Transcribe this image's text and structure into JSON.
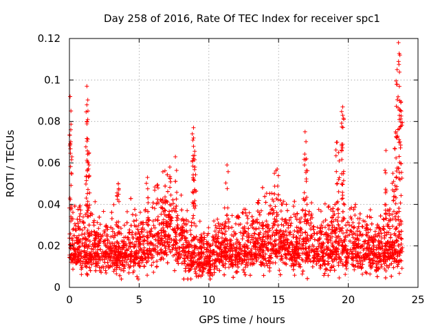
{
  "chart_data": {
    "type": "scatter",
    "title": "Day 258 of 2016, Rate Of TEC Index for receiver spc1",
    "xlabel": "GPS time / hours",
    "ylabel": "ROTI / TECUs",
    "xlim": [
      0,
      25
    ],
    "ylim": [
      0,
      0.12
    ],
    "x_ticks": [
      0,
      5,
      10,
      15,
      20,
      25
    ],
    "y_ticks": [
      0,
      0.02,
      0.04,
      0.06,
      0.08,
      0.1,
      0.12
    ],
    "x_tick_labels": [
      "0",
      "5",
      "10",
      "15",
      "20",
      "25"
    ],
    "y_tick_labels": [
      "0",
      "0.02",
      "0.04",
      "0.06",
      "0.08",
      "0.1",
      "0.12"
    ],
    "grid": true,
    "marker": "plus",
    "marker_color": "#ff0000",
    "n_points": 4300,
    "series": [
      {
        "name": "ROTI",
        "description_note": "Dense cloud of ROTI samples; baseline level per hour with visible spikes.",
        "baseline_profile": [
          {
            "x": 0.0,
            "y": 0.018
          },
          {
            "x": 1.0,
            "y": 0.018
          },
          {
            "x": 2.0,
            "y": 0.016
          },
          {
            "x": 3.0,
            "y": 0.016
          },
          {
            "x": 4.0,
            "y": 0.016
          },
          {
            "x": 5.0,
            "y": 0.017
          },
          {
            "x": 6.0,
            "y": 0.021
          },
          {
            "x": 7.0,
            "y": 0.026
          },
          {
            "x": 8.0,
            "y": 0.02
          },
          {
            "x": 9.0,
            "y": 0.012
          },
          {
            "x": 10.0,
            "y": 0.013
          },
          {
            "x": 11.0,
            "y": 0.017
          },
          {
            "x": 12.0,
            "y": 0.016
          },
          {
            "x": 13.0,
            "y": 0.017
          },
          {
            "x": 14.0,
            "y": 0.021
          },
          {
            "x": 15.0,
            "y": 0.02
          },
          {
            "x": 16.0,
            "y": 0.018
          },
          {
            "x": 17.0,
            "y": 0.02
          },
          {
            "x": 18.0,
            "y": 0.017
          },
          {
            "x": 19.0,
            "y": 0.018
          },
          {
            "x": 20.0,
            "y": 0.018
          },
          {
            "x": 21.0,
            "y": 0.017
          },
          {
            "x": 22.0,
            "y": 0.016
          },
          {
            "x": 23.0,
            "y": 0.018
          },
          {
            "x": 23.9,
            "y": 0.02
          }
        ],
        "peaks": [
          {
            "x": 0.05,
            "y": 0.092
          },
          {
            "x": 0.1,
            "y": 0.076
          },
          {
            "x": 0.05,
            "y": 0.069
          },
          {
            "x": 1.25,
            "y": 0.097
          },
          {
            "x": 1.25,
            "y": 0.088
          },
          {
            "x": 1.25,
            "y": 0.08
          },
          {
            "x": 1.4,
            "y": 0.065
          },
          {
            "x": 1.4,
            "y": 0.059
          },
          {
            "x": 3.5,
            "y": 0.05
          },
          {
            "x": 5.6,
            "y": 0.053
          },
          {
            "x": 7.2,
            "y": 0.058
          },
          {
            "x": 7.6,
            "y": 0.063
          },
          {
            "x": 8.9,
            "y": 0.077
          },
          {
            "x": 8.9,
            "y": 0.072
          },
          {
            "x": 8.9,
            "y": 0.068
          },
          {
            "x": 9.0,
            "y": 0.058
          },
          {
            "x": 11.3,
            "y": 0.059
          },
          {
            "x": 14.7,
            "y": 0.055
          },
          {
            "x": 14.9,
            "y": 0.057
          },
          {
            "x": 16.9,
            "y": 0.075
          },
          {
            "x": 17.0,
            "y": 0.062
          },
          {
            "x": 19.2,
            "y": 0.07
          },
          {
            "x": 19.3,
            "y": 0.065
          },
          {
            "x": 19.6,
            "y": 0.087
          },
          {
            "x": 19.6,
            "y": 0.083
          },
          {
            "x": 19.6,
            "y": 0.069
          },
          {
            "x": 22.7,
            "y": 0.066
          },
          {
            "x": 23.2,
            "y": 0.055
          },
          {
            "x": 23.4,
            "y": 0.075
          },
          {
            "x": 23.5,
            "y": 0.098
          },
          {
            "x": 23.5,
            "y": 0.105
          },
          {
            "x": 23.6,
            "y": 0.118
          },
          {
            "x": 23.7,
            "y": 0.112
          },
          {
            "x": 23.7,
            "y": 0.09
          },
          {
            "x": 23.8,
            "y": 0.085
          }
        ]
      }
    ]
  }
}
